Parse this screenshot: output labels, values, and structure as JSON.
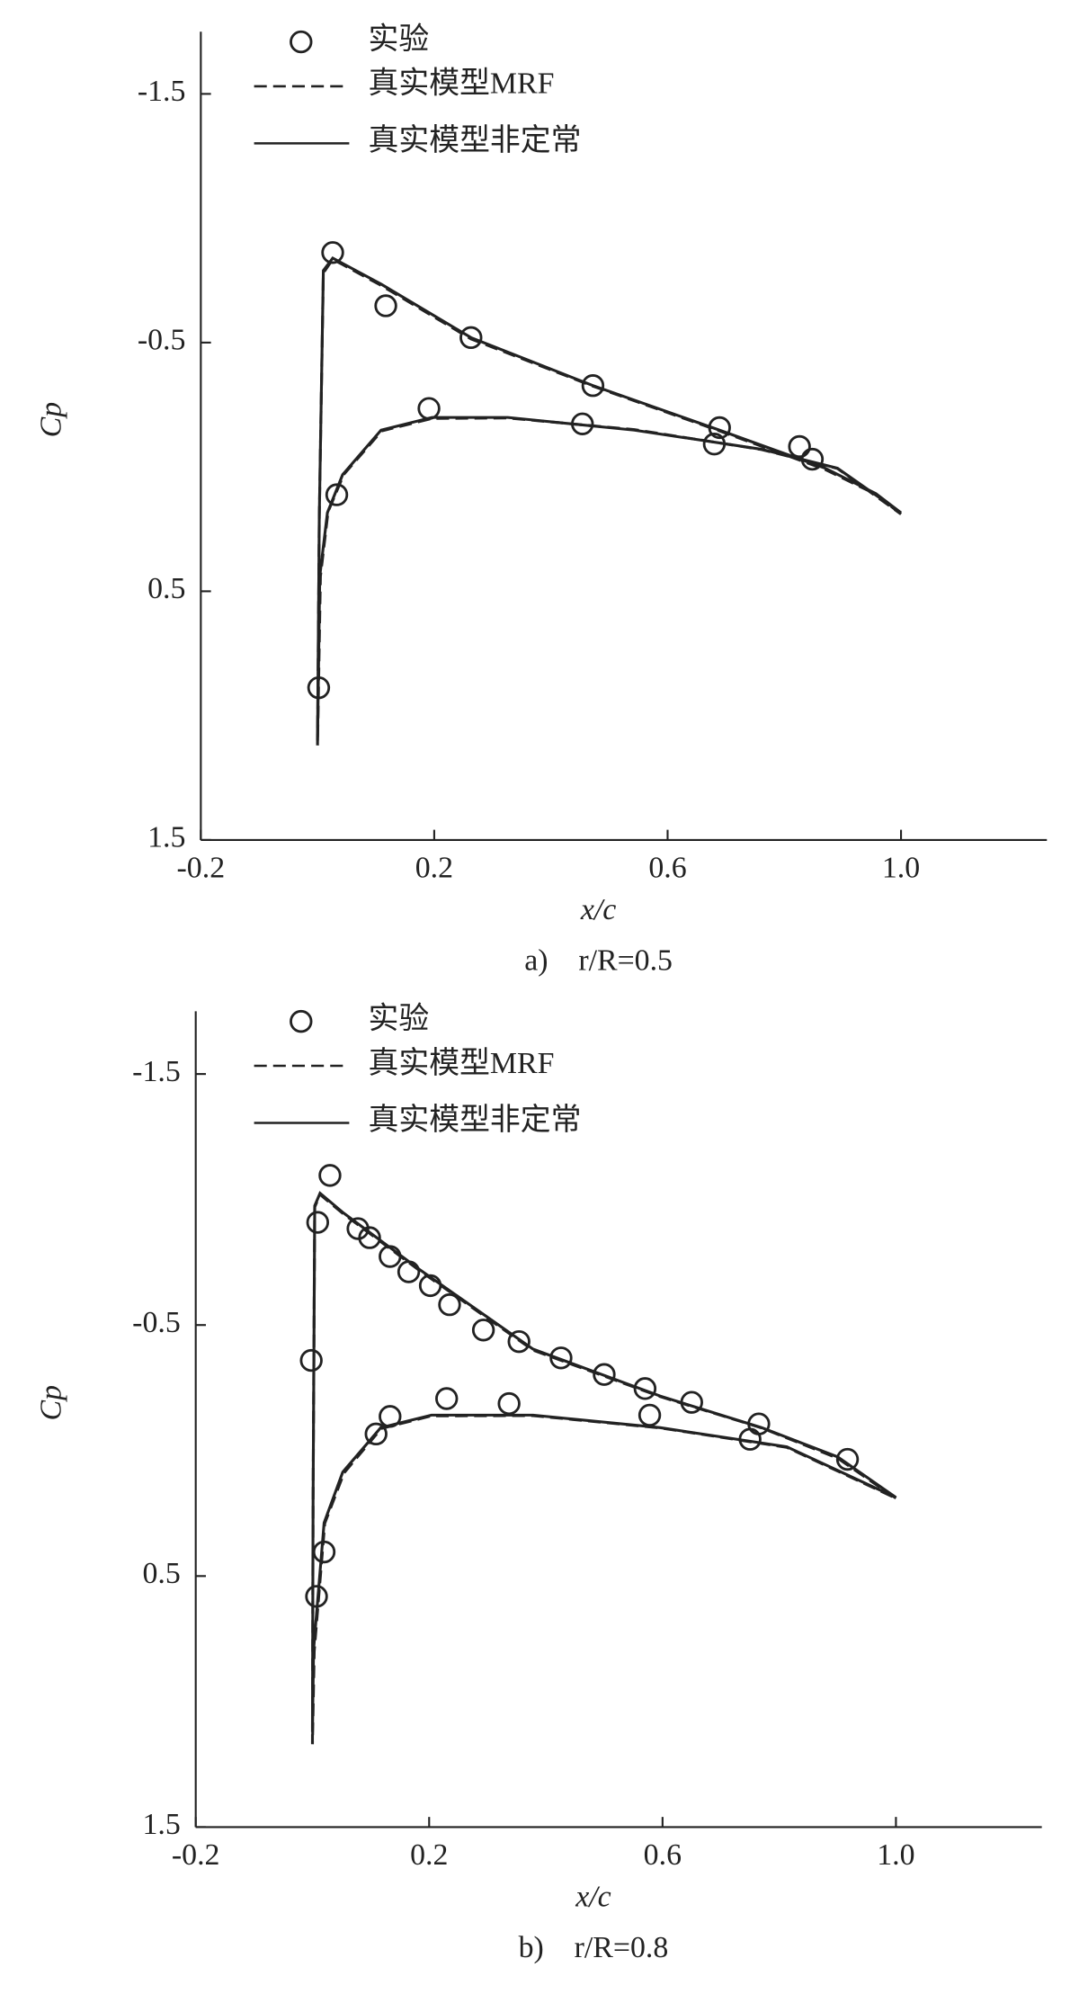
{
  "chart_data": [
    {
      "type": "line",
      "x_label": "x/c",
      "y_label": "Cp",
      "caption": "a)　r/R=0.5",
      "xlim": [
        -0.2,
        1.25
      ],
      "ylim": [
        1.5,
        -1.75
      ],
      "xticks": [
        -0.2,
        0.2,
        0.6,
        {
          "value": 1,
          "label": "1.0"
        }
      ],
      "yticks": [
        -1.5,
        -0.5,
        0.5,
        1.5
      ],
      "series": [
        {
          "name": "实验",
          "style": "marker",
          "color": "#222",
          "x": [
            0.026,
            0.117,
            0.263,
            0.472,
            0.689,
            0.826,
            0.848,
            0.191,
            0.454,
            0.68,
            0.033,
            0.002
          ],
          "values": [
            -0.862,
            -0.648,
            -0.52,
            -0.327,
            -0.158,
            -0.082,
            -0.031,
            -0.235,
            -0.173,
            -0.092,
            0.112,
            0.888
          ]
        },
        {
          "name": "真实模型MRF",
          "style": "dashed",
          "color": "#222",
          "x": [
            1.0,
            0.957,
            0.87,
            0.689,
            0.472,
            0.263,
            0.109,
            0.026,
            0.01,
            0.003,
            0.0,
            0.005,
            0.018,
            0.045,
            0.11,
            0.196,
            0.326,
            0.543,
            0.761,
            0.891,
            1.0
          ],
          "values": [
            0.19,
            0.11,
            0.01,
            -0.145,
            -0.325,
            -0.515,
            -0.73,
            -0.835,
            -0.78,
            0.2,
            1.12,
            0.44,
            0.18,
            0.03,
            -0.145,
            -0.195,
            -0.197,
            -0.15,
            -0.07,
            0.006,
            0.19
          ]
        },
        {
          "name": "真实模型非定常",
          "style": "solid",
          "color": "#222",
          "x": [
            1.0,
            0.957,
            0.87,
            0.689,
            0.472,
            0.263,
            0.109,
            0.026,
            0.01,
            0.003,
            0.0,
            0.004,
            0.017,
            0.043,
            0.109,
            0.196,
            0.326,
            0.543,
            0.761,
            0.891,
            1.0
          ],
          "values": [
            0.184,
            0.107,
            0.005,
            -0.148,
            -0.327,
            -0.52,
            -0.735,
            -0.84,
            -0.79,
            0.2,
            1.1,
            0.439,
            0.184,
            0.031,
            -0.148,
            -0.199,
            -0.199,
            -0.148,
            -0.071,
            0.005,
            0.184
          ]
        }
      ]
    },
    {
      "type": "line",
      "x_label": "x/c",
      "y_label": "Cp",
      "caption": "b)　r/R=0.8",
      "xlim": [
        -0.2,
        1.25
      ],
      "ylim": [
        1.5,
        -1.75
      ],
      "xticks": [
        -0.2,
        0.2,
        0.6,
        {
          "value": 1,
          "label": "1.0"
        }
      ],
      "yticks": [
        -1.5,
        -0.5,
        0.5,
        1.5
      ],
      "series": [
        {
          "name": "实验",
          "style": "marker",
          "color": "#222",
          "x": [
            0.03,
            0.009,
            0.078,
            0.098,
            0.133,
            0.165,
            0.202,
            0.235,
            0.293,
            0.354,
            0.426,
            0.5,
            0.57,
            0.65,
            0.765,
            0.917,
            -0.002,
            0.23,
            0.337,
            0.578,
            0.75,
            0.133,
            0.109,
            0.02,
            0.007
          ],
          "values": [
            -1.096,
            -0.909,
            -0.884,
            -0.848,
            -0.773,
            -0.712,
            -0.657,
            -0.581,
            -0.48,
            -0.434,
            -0.369,
            -0.303,
            -0.247,
            -0.192,
            -0.106,
            0.035,
            -0.359,
            -0.207,
            -0.187,
            -0.141,
            -0.045,
            -0.136,
            -0.066,
            0.404,
            0.581
          ]
        },
        {
          "name": "真实模型MRF",
          "style": "dashed",
          "color": "#222",
          "x": [
            1.0,
            0.9,
            0.77,
            0.596,
            0.378,
            0.183,
            0.052,
            0.013,
            0.004,
            0.001,
            0.0,
            0.003,
            0.021,
            0.054,
            0.118,
            0.204,
            0.378,
            0.596,
            0.813,
            1.0
          ],
          "values": [
            0.19,
            0.03,
            -0.09,
            -0.215,
            -0.4,
            -0.718,
            -0.945,
            -1.02,
            -0.97,
            0.2,
            1.17,
            0.8,
            0.29,
            0.09,
            -0.088,
            -0.138,
            -0.139,
            -0.09,
            -0.013,
            0.19
          ]
        },
        {
          "name": "真实模型非定常",
          "style": "solid",
          "color": "#222",
          "x": [
            1.0,
            0.9,
            0.77,
            0.596,
            0.378,
            0.183,
            0.052,
            0.013,
            0.004,
            0.001,
            0.0,
            0.002,
            0.02,
            0.052,
            0.117,
            0.204,
            0.378,
            0.596,
            0.813,
            1.0
          ],
          "values": [
            0.187,
            0.025,
            -0.091,
            -0.217,
            -0.404,
            -0.722,
            -0.949,
            -1.025,
            -0.975,
            0.2,
            1.121,
            0.793,
            0.288,
            0.086,
            -0.091,
            -0.141,
            -0.141,
            -0.091,
            -0.015,
            0.187
          ]
        }
      ]
    }
  ]
}
